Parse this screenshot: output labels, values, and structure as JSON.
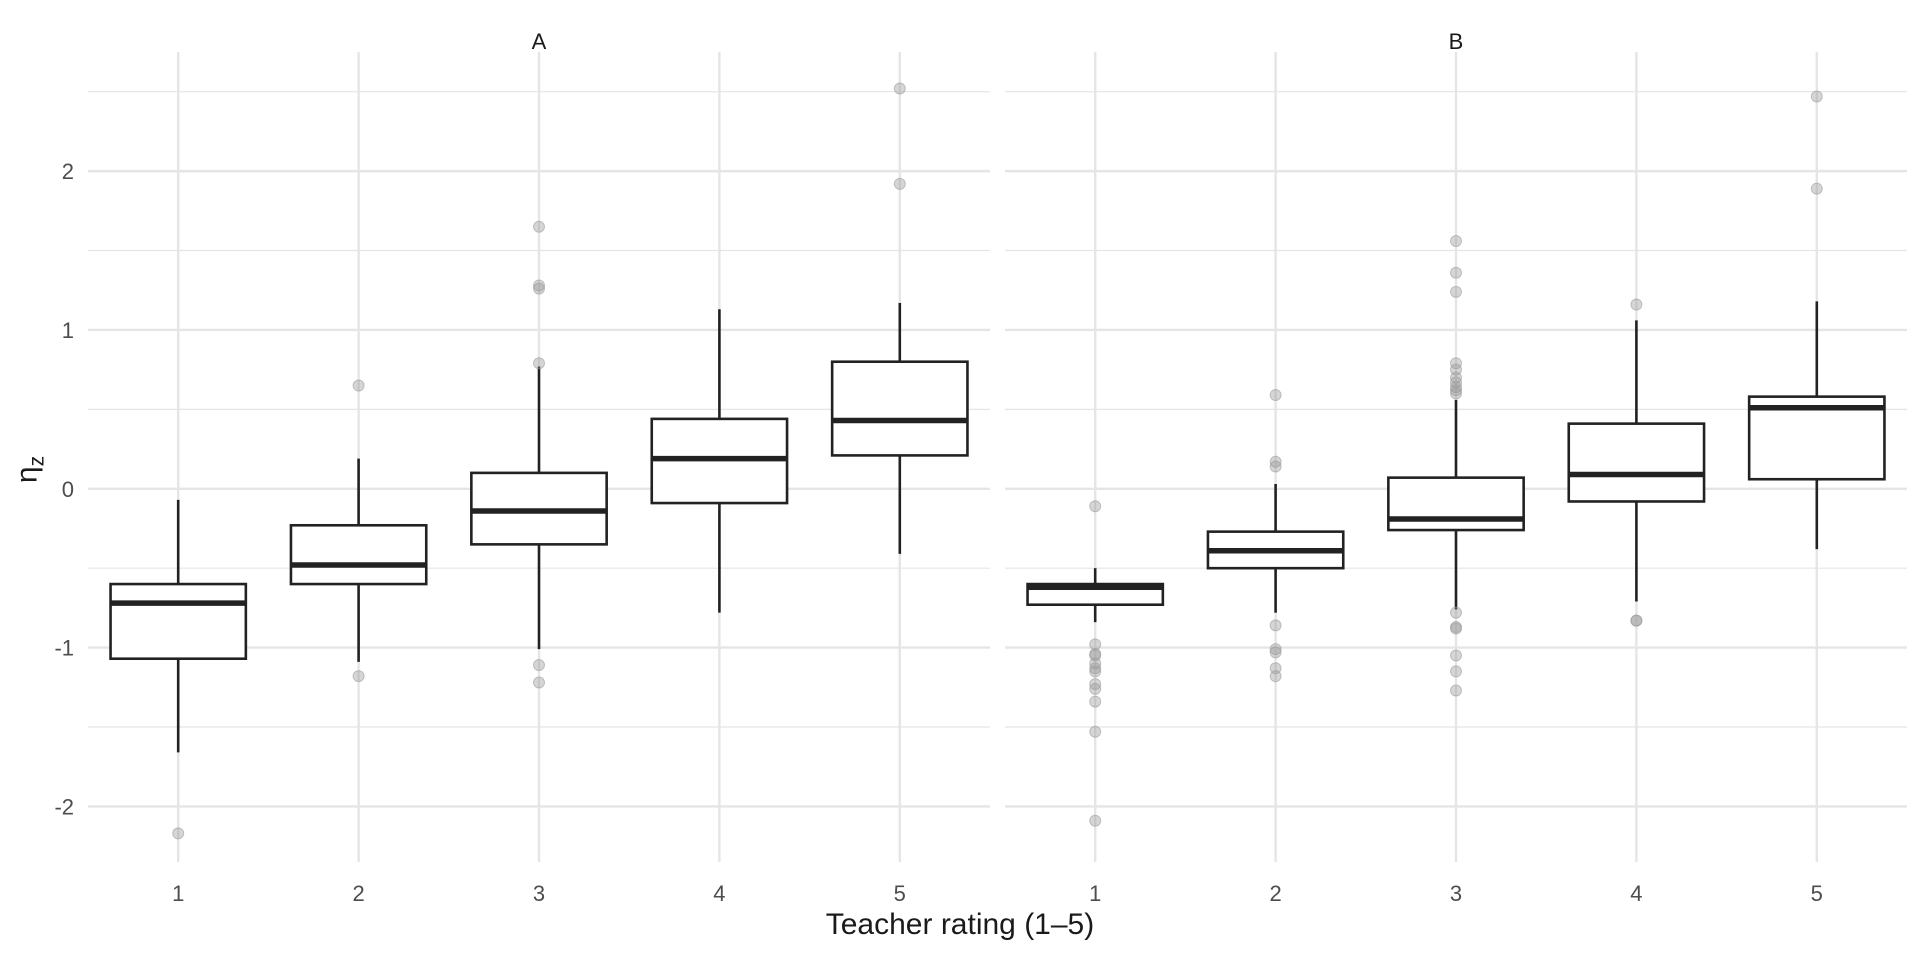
{
  "chart_data": {
    "type": "boxplot",
    "xlabel": "Teacher rating (1–5)",
    "ylabel": "η",
    "ylabel_sub": "z",
    "categories": [
      "1",
      "2",
      "3",
      "4",
      "5"
    ],
    "ylim": [
      -2.35,
      2.75
    ],
    "yticks": [
      -2,
      -1,
      0,
      1,
      2
    ],
    "grid": true,
    "colors": {
      "box": "#222222",
      "outlier": "#999999",
      "grid": "#e5e5e5",
      "text": "#4d4d4d"
    },
    "panels": [
      {
        "title": "A",
        "boxes": [
          {
            "category": "1",
            "whisker_low": -1.66,
            "q1": -1.07,
            "median": -0.72,
            "q3": -0.6,
            "whisker_high": -0.07,
            "outliers": [
              -2.17
            ]
          },
          {
            "category": "2",
            "whisker_low": -1.09,
            "q1": -0.6,
            "median": -0.48,
            "q3": -0.23,
            "whisker_high": 0.19,
            "outliers": [
              -1.18,
              0.65
            ]
          },
          {
            "category": "3",
            "whisker_low": -1.01,
            "q1": -0.35,
            "median": -0.14,
            "q3": 0.1,
            "whisker_high": 0.77,
            "outliers": [
              -1.22,
              -1.11,
              0.79,
              1.26,
              1.28,
              1.65
            ]
          },
          {
            "category": "4",
            "whisker_low": -0.78,
            "q1": -0.09,
            "median": 0.19,
            "q3": 0.44,
            "whisker_high": 1.13,
            "outliers": []
          },
          {
            "category": "5",
            "whisker_low": -0.41,
            "q1": 0.21,
            "median": 0.43,
            "q3": 0.8,
            "whisker_high": 1.17,
            "outliers": [
              1.92,
              2.52
            ]
          }
        ]
      },
      {
        "title": "B",
        "boxes": [
          {
            "category": "1",
            "whisker_low": -0.84,
            "q1": -0.73,
            "median": -0.62,
            "q3": -0.6,
            "whisker_high": -0.5,
            "outliers": [
              -2.09,
              -1.53,
              -1.34,
              -1.26,
              -1.23,
              -1.15,
              -1.13,
              -1.1,
              -1.05,
              -1.04,
              -0.98,
              -0.11
            ]
          },
          {
            "category": "2",
            "whisker_low": -0.78,
            "q1": -0.5,
            "median": -0.39,
            "q3": -0.27,
            "whisker_high": 0.03,
            "outliers": [
              -1.18,
              -1.13,
              -1.03,
              -1.01,
              -0.86,
              0.14,
              0.17,
              0.59
            ]
          },
          {
            "category": "3",
            "whisker_low": -0.76,
            "q1": -0.26,
            "median": -0.19,
            "q3": 0.07,
            "whisker_high": 0.56,
            "outliers": [
              -1.27,
              -1.15,
              -1.05,
              -0.88,
              -0.87,
              -0.78,
              0.6,
              0.62,
              0.64,
              0.67,
              0.7,
              0.75,
              0.79,
              1.24,
              1.36,
              1.56
            ]
          },
          {
            "category": "4",
            "whisker_low": -0.71,
            "q1": -0.08,
            "median": 0.09,
            "q3": 0.41,
            "whisker_high": 1.06,
            "outliers": [
              -0.83,
              -0.83,
              1.16
            ]
          },
          {
            "category": "5",
            "whisker_low": -0.38,
            "q1": 0.06,
            "median": 0.51,
            "q3": 0.58,
            "whisker_high": 1.18,
            "outliers": [
              1.89,
              2.47
            ]
          }
        ]
      }
    ]
  }
}
